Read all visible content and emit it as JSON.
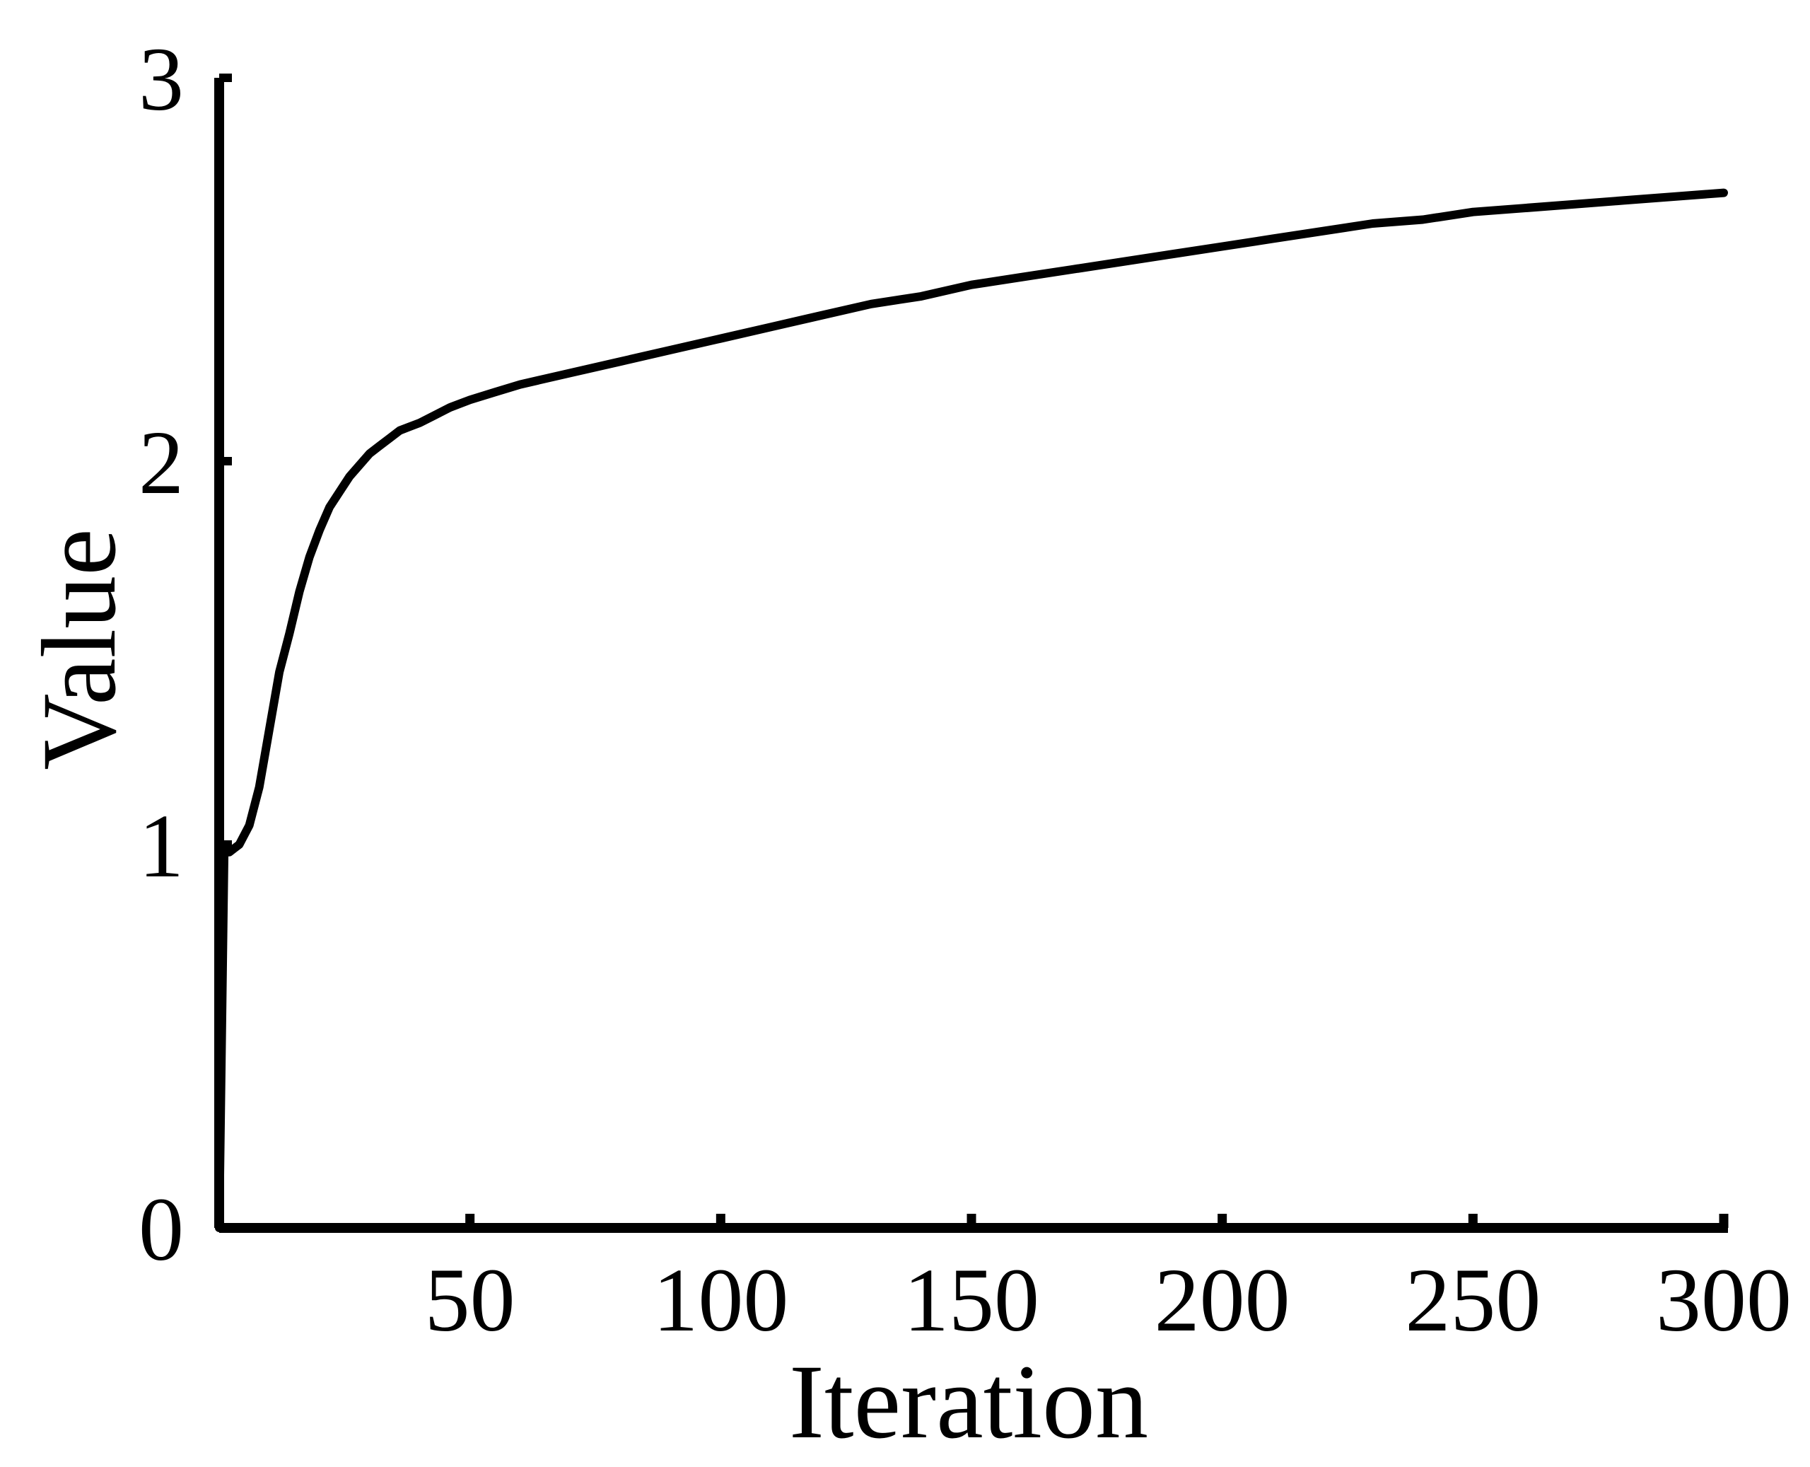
{
  "chart_data": {
    "type": "line",
    "title": "",
    "xlabel": "Iteration",
    "ylabel": "Value",
    "xlim": [
      0,
      300
    ],
    "ylim": [
      0,
      3
    ],
    "x_ticks": [
      50,
      100,
      150,
      200,
      250,
      300
    ],
    "y_ticks": [
      0,
      1,
      2,
      3
    ],
    "grid": false,
    "legend": "none",
    "line_color": "#000000",
    "series": [
      {
        "x": [
          0,
          1,
          2,
          3,
          4,
          6,
          8,
          10,
          12,
          14,
          16,
          18,
          20,
          22,
          24,
          26,
          28,
          30,
          32,
          34,
          36,
          38,
          40,
          43,
          46,
          50,
          55,
          60,
          70,
          80,
          90,
          100,
          110,
          120,
          130,
          140,
          150,
          160,
          170,
          180,
          190,
          200,
          210,
          220,
          230,
          240,
          250,
          260,
          270,
          280,
          290,
          300
        ],
        "y": [
          0.0,
          0.98,
          0.98,
          0.99,
          1.0,
          1.05,
          1.15,
          1.3,
          1.45,
          1.55,
          1.66,
          1.75,
          1.82,
          1.88,
          1.92,
          1.96,
          1.99,
          2.02,
          2.04,
          2.06,
          2.08,
          2.09,
          2.1,
          2.12,
          2.14,
          2.16,
          2.18,
          2.2,
          2.23,
          2.26,
          2.29,
          2.32,
          2.35,
          2.38,
          2.41,
          2.43,
          2.46,
          2.48,
          2.5,
          2.52,
          2.54,
          2.56,
          2.58,
          2.6,
          2.62,
          2.63,
          2.65,
          2.66,
          2.67,
          2.68,
          2.69,
          2.7
        ]
      }
    ]
  }
}
